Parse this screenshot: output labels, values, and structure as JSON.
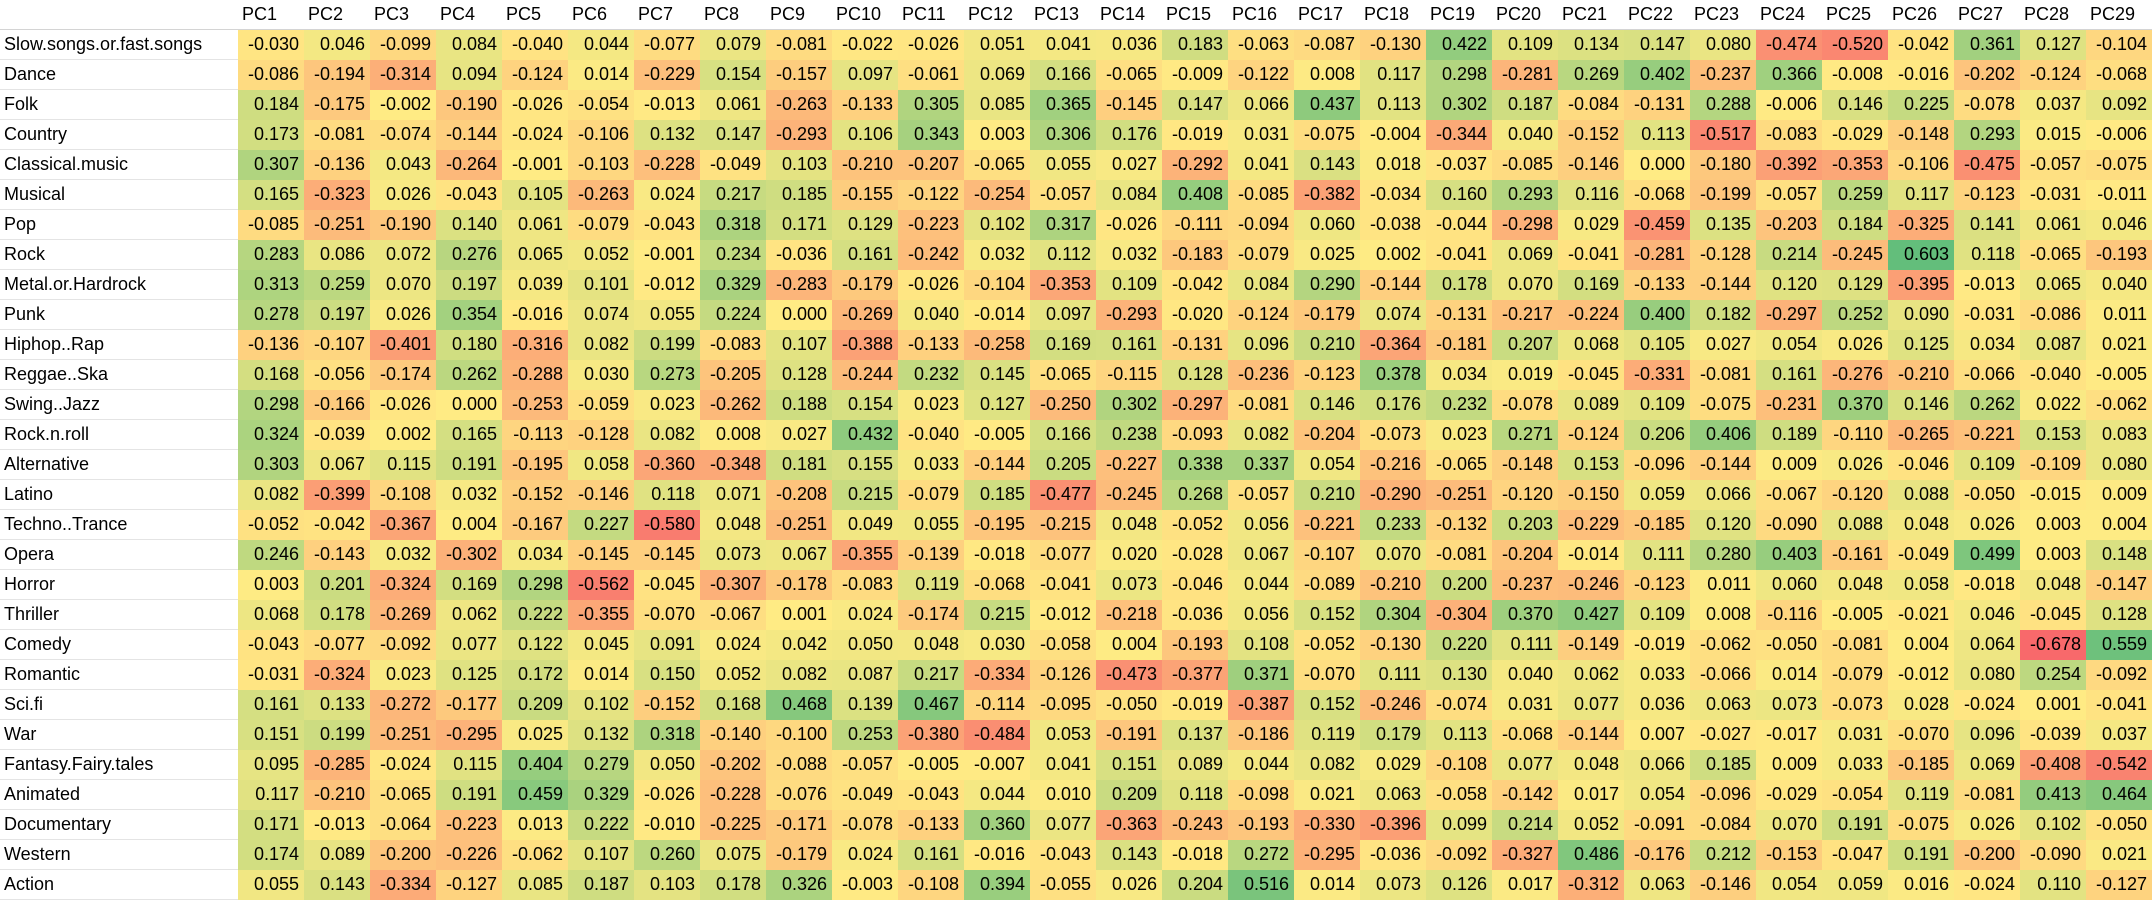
{
  "chart_data": {
    "type": "heatmap",
    "color_scale": {
      "low": "#f8696b",
      "mid": "#ffeb84",
      "high": "#63be7b"
    },
    "columns": [
      "PC1",
      "PC2",
      "PC3",
      "PC4",
      "PC5",
      "PC6",
      "PC7",
      "PC8",
      "PC9",
      "PC10",
      "PC11",
      "PC12",
      "PC13",
      "PC14",
      "PC15",
      "PC16",
      "PC17",
      "PC18",
      "PC19",
      "PC20",
      "PC21",
      "PC22",
      "PC23",
      "PC24",
      "PC25",
      "PC26",
      "PC27",
      "PC28",
      "PC29"
    ],
    "rows": [
      {
        "label": "Slow.songs.or.fast.songs",
        "values": [
          "-0.030",
          "0.046",
          "-0.099",
          "0.084",
          "-0.040",
          "0.044",
          "-0.077",
          "0.079",
          "-0.081",
          "-0.022",
          "-0.026",
          "0.051",
          "0.041",
          "0.036",
          "0.183",
          "-0.063",
          "-0.087",
          "-0.130",
          "0.422",
          "0.109",
          "0.134",
          "0.147",
          "0.080",
          "-0.474",
          "-0.520",
          "-0.042",
          "0.361",
          "0.127",
          "-0.104"
        ]
      },
      {
        "label": "Dance",
        "values": [
          "-0.086",
          "-0.194",
          "-0.314",
          "0.094",
          "-0.124",
          "0.014",
          "-0.229",
          "0.154",
          "-0.157",
          "0.097",
          "-0.061",
          "0.069",
          "0.166",
          "-0.065",
          "-0.009",
          "-0.122",
          "0.008",
          "0.117",
          "0.298",
          "-0.281",
          "0.269",
          "0.402",
          "-0.237",
          "0.366",
          "-0.008",
          "-0.016",
          "-0.202",
          "-0.124",
          "-0.068"
        ]
      },
      {
        "label": "Folk",
        "values": [
          "0.184",
          "-0.175",
          "-0.002",
          "-0.190",
          "-0.026",
          "-0.054",
          "-0.013",
          "0.061",
          "-0.263",
          "-0.133",
          "0.305",
          "0.085",
          "0.365",
          "-0.145",
          "0.147",
          "0.066",
          "0.437",
          "0.113",
          "0.302",
          "0.187",
          "-0.084",
          "-0.131",
          "0.288",
          "-0.006",
          "0.146",
          "0.225",
          "-0.078",
          "0.037",
          "0.092"
        ]
      },
      {
        "label": "Country",
        "values": [
          "0.173",
          "-0.081",
          "-0.074",
          "-0.144",
          "-0.024",
          "-0.106",
          "0.132",
          "0.147",
          "-0.293",
          "0.106",
          "0.343",
          "0.003",
          "0.306",
          "0.176",
          "-0.019",
          "0.031",
          "-0.075",
          "-0.004",
          "-0.344",
          "0.040",
          "-0.152",
          "0.113",
          "-0.517",
          "-0.083",
          "-0.029",
          "-0.148",
          "0.293",
          "0.015",
          "-0.006"
        ]
      },
      {
        "label": "Classical.music",
        "values": [
          "0.307",
          "-0.136",
          "0.043",
          "-0.264",
          "-0.001",
          "-0.103",
          "-0.228",
          "-0.049",
          "0.103",
          "-0.210",
          "-0.207",
          "-0.065",
          "0.055",
          "0.027",
          "-0.292",
          "0.041",
          "0.143",
          "0.018",
          "-0.037",
          "-0.085",
          "-0.146",
          "0.000",
          "-0.180",
          "-0.392",
          "-0.353",
          "-0.106",
          "-0.475",
          "-0.057",
          "-0.075"
        ]
      },
      {
        "label": "Musical",
        "values": [
          "0.165",
          "-0.323",
          "0.026",
          "-0.043",
          "0.105",
          "-0.263",
          "0.024",
          "0.217",
          "0.185",
          "-0.155",
          "-0.122",
          "-0.254",
          "-0.057",
          "0.084",
          "0.408",
          "-0.085",
          "-0.382",
          "-0.034",
          "0.160",
          "0.293",
          "0.116",
          "-0.068",
          "-0.199",
          "-0.057",
          "0.259",
          "0.117",
          "-0.123",
          "-0.031",
          "-0.011"
        ]
      },
      {
        "label": "Pop",
        "values": [
          "-0.085",
          "-0.251",
          "-0.190",
          "0.140",
          "0.061",
          "-0.079",
          "-0.043",
          "0.318",
          "0.171",
          "0.129",
          "-0.223",
          "0.102",
          "0.317",
          "-0.026",
          "-0.111",
          "-0.094",
          "0.060",
          "-0.038",
          "-0.044",
          "-0.298",
          "0.029",
          "-0.459",
          "0.135",
          "-0.203",
          "0.184",
          "-0.325",
          "0.141",
          "0.061",
          "0.046"
        ]
      },
      {
        "label": "Rock",
        "values": [
          "0.283",
          "0.086",
          "0.072",
          "0.276",
          "0.065",
          "0.052",
          "-0.001",
          "0.234",
          "-0.036",
          "0.161",
          "-0.242",
          "0.032",
          "0.112",
          "0.032",
          "-0.183",
          "-0.079",
          "0.025",
          "0.002",
          "-0.041",
          "0.069",
          "-0.041",
          "-0.281",
          "-0.128",
          "0.214",
          "-0.245",
          "0.603",
          "0.118",
          "-0.065",
          "-0.193"
        ]
      },
      {
        "label": "Metal.or.Hardrock",
        "values": [
          "0.313",
          "0.259",
          "0.070",
          "0.197",
          "0.039",
          "0.101",
          "-0.012",
          "0.329",
          "-0.283",
          "-0.179",
          "-0.026",
          "-0.104",
          "-0.353",
          "0.109",
          "-0.042",
          "0.084",
          "0.290",
          "-0.144",
          "0.178",
          "0.070",
          "0.169",
          "-0.133",
          "-0.144",
          "0.120",
          "0.129",
          "-0.395",
          "-0.013",
          "0.065",
          "0.040"
        ]
      },
      {
        "label": "Punk",
        "values": [
          "0.278",
          "0.197",
          "0.026",
          "0.354",
          "-0.016",
          "0.074",
          "0.055",
          "0.224",
          "0.000",
          "-0.269",
          "0.040",
          "-0.014",
          "0.097",
          "-0.293",
          "-0.020",
          "-0.124",
          "-0.179",
          "0.074",
          "-0.131",
          "-0.217",
          "-0.224",
          "0.400",
          "0.182",
          "-0.297",
          "0.252",
          "0.090",
          "-0.031",
          "-0.086",
          "0.011"
        ]
      },
      {
        "label": "Hiphop..Rap",
        "values": [
          "-0.136",
          "-0.107",
          "-0.401",
          "0.180",
          "-0.316",
          "0.082",
          "0.199",
          "-0.083",
          "0.107",
          "-0.388",
          "-0.133",
          "-0.258",
          "0.169",
          "0.161",
          "-0.131",
          "0.096",
          "0.210",
          "-0.364",
          "-0.181",
          "0.207",
          "0.068",
          "0.105",
          "0.027",
          "0.054",
          "0.026",
          "0.125",
          "0.034",
          "0.087",
          "0.021"
        ]
      },
      {
        "label": "Reggae..Ska",
        "values": [
          "0.168",
          "-0.056",
          "-0.174",
          "0.262",
          "-0.288",
          "0.030",
          "0.273",
          "-0.205",
          "0.128",
          "-0.244",
          "0.232",
          "0.145",
          "-0.065",
          "-0.115",
          "0.128",
          "-0.236",
          "-0.123",
          "0.378",
          "0.034",
          "0.019",
          "-0.045",
          "-0.331",
          "-0.081",
          "0.161",
          "-0.276",
          "-0.210",
          "-0.066",
          "-0.040",
          "-0.005"
        ]
      },
      {
        "label": "Swing..Jazz",
        "values": [
          "0.298",
          "-0.166",
          "-0.026",
          "0.000",
          "-0.253",
          "-0.059",
          "0.023",
          "-0.262",
          "0.188",
          "0.154",
          "0.023",
          "0.127",
          "-0.250",
          "0.302",
          "-0.297",
          "-0.081",
          "0.146",
          "0.176",
          "0.232",
          "-0.078",
          "0.089",
          "0.109",
          "-0.075",
          "-0.231",
          "0.370",
          "0.146",
          "0.262",
          "0.022",
          "-0.062"
        ]
      },
      {
        "label": "Rock.n.roll",
        "values": [
          "0.324",
          "-0.039",
          "0.002",
          "0.165",
          "-0.113",
          "-0.128",
          "0.082",
          "0.008",
          "0.027",
          "0.432",
          "-0.040",
          "-0.005",
          "0.166",
          "0.238",
          "-0.093",
          "0.082",
          "-0.204",
          "-0.073",
          "0.023",
          "0.271",
          "-0.124",
          "0.206",
          "0.406",
          "0.189",
          "-0.110",
          "-0.265",
          "-0.221",
          "0.153",
          "0.083"
        ]
      },
      {
        "label": "Alternative",
        "values": [
          "0.303",
          "0.067",
          "0.115",
          "0.191",
          "-0.195",
          "0.058",
          "-0.360",
          "-0.348",
          "0.181",
          "0.155",
          "0.033",
          "-0.144",
          "0.205",
          "-0.227",
          "0.338",
          "0.337",
          "0.054",
          "-0.216",
          "-0.065",
          "-0.148",
          "0.153",
          "-0.096",
          "-0.144",
          "0.009",
          "0.026",
          "-0.046",
          "0.109",
          "-0.109",
          "0.080"
        ]
      },
      {
        "label": "Latino",
        "values": [
          "0.082",
          "-0.399",
          "-0.108",
          "0.032",
          "-0.152",
          "-0.146",
          "0.118",
          "0.071",
          "-0.208",
          "0.215",
          "-0.079",
          "0.185",
          "-0.477",
          "-0.245",
          "0.268",
          "-0.057",
          "0.210",
          "-0.290",
          "-0.251",
          "-0.120",
          "-0.150",
          "0.059",
          "0.066",
          "-0.067",
          "-0.120",
          "0.088",
          "-0.050",
          "-0.015",
          "0.009"
        ]
      },
      {
        "label": "Techno..Trance",
        "values": [
          "-0.052",
          "-0.042",
          "-0.367",
          "0.004",
          "-0.167",
          "0.227",
          "-0.580",
          "0.048",
          "-0.251",
          "0.049",
          "0.055",
          "-0.195",
          "-0.215",
          "0.048",
          "-0.052",
          "0.056",
          "-0.221",
          "0.233",
          "-0.132",
          "0.203",
          "-0.229",
          "-0.185",
          "0.120",
          "-0.090",
          "0.088",
          "0.048",
          "0.026",
          "0.003",
          "0.004"
        ]
      },
      {
        "label": "Opera",
        "values": [
          "0.246",
          "-0.143",
          "0.032",
          "-0.302",
          "0.034",
          "-0.145",
          "-0.145",
          "0.073",
          "0.067",
          "-0.355",
          "-0.139",
          "-0.018",
          "-0.077",
          "0.020",
          "-0.028",
          "0.067",
          "-0.107",
          "0.070",
          "-0.081",
          "-0.204",
          "-0.014",
          "0.111",
          "0.280",
          "0.403",
          "-0.161",
          "-0.049",
          "0.499",
          "0.003",
          "0.148"
        ]
      },
      {
        "label": "Horror",
        "values": [
          "0.003",
          "0.201",
          "-0.324",
          "0.169",
          "0.298",
          "-0.562",
          "-0.045",
          "-0.307",
          "-0.178",
          "-0.083",
          "0.119",
          "-0.068",
          "-0.041",
          "0.073",
          "-0.046",
          "0.044",
          "-0.089",
          "-0.210",
          "0.200",
          "-0.237",
          "-0.246",
          "-0.123",
          "0.011",
          "0.060",
          "0.048",
          "0.058",
          "-0.018",
          "0.048",
          "-0.147"
        ]
      },
      {
        "label": "Thriller",
        "values": [
          "0.068",
          "0.178",
          "-0.269",
          "0.062",
          "0.222",
          "-0.355",
          "-0.070",
          "-0.067",
          "0.001",
          "0.024",
          "-0.174",
          "0.215",
          "-0.012",
          "-0.218",
          "-0.036",
          "0.056",
          "0.152",
          "0.304",
          "-0.304",
          "0.370",
          "0.427",
          "0.109",
          "0.008",
          "-0.116",
          "-0.005",
          "-0.021",
          "0.046",
          "-0.045",
          "0.128"
        ]
      },
      {
        "label": "Comedy",
        "values": [
          "-0.043",
          "-0.077",
          "-0.092",
          "0.077",
          "0.122",
          "0.045",
          "0.091",
          "0.024",
          "0.042",
          "0.050",
          "0.048",
          "0.030",
          "-0.058",
          "0.004",
          "-0.193",
          "0.108",
          "-0.052",
          "-0.130",
          "0.220",
          "0.111",
          "-0.149",
          "-0.019",
          "-0.062",
          "-0.050",
          "-0.081",
          "0.004",
          "0.064",
          "-0.678",
          "0.559"
        ]
      },
      {
        "label": "Romantic",
        "values": [
          "-0.031",
          "-0.324",
          "0.023",
          "0.125",
          "0.172",
          "0.014",
          "0.150",
          "0.052",
          "0.082",
          "0.087",
          "0.217",
          "-0.334",
          "-0.126",
          "-0.473",
          "-0.377",
          "0.371",
          "-0.070",
          "0.111",
          "0.130",
          "0.040",
          "0.062",
          "0.033",
          "-0.066",
          "0.014",
          "-0.079",
          "-0.012",
          "0.080",
          "0.254",
          "-0.092"
        ]
      },
      {
        "label": "Sci.fi",
        "values": [
          "0.161",
          "0.133",
          "-0.272",
          "-0.177",
          "0.209",
          "0.102",
          "-0.152",
          "0.168",
          "0.468",
          "0.139",
          "0.467",
          "-0.114",
          "-0.095",
          "-0.050",
          "-0.019",
          "-0.387",
          "0.152",
          "-0.246",
          "-0.074",
          "0.031",
          "0.077",
          "0.036",
          "0.063",
          "0.073",
          "-0.073",
          "0.028",
          "-0.024",
          "0.001",
          "-0.041"
        ]
      },
      {
        "label": "War",
        "values": [
          "0.151",
          "0.199",
          "-0.251",
          "-0.295",
          "0.025",
          "0.132",
          "0.318",
          "-0.140",
          "-0.100",
          "0.253",
          "-0.380",
          "-0.484",
          "0.053",
          "-0.191",
          "0.137",
          "-0.186",
          "0.119",
          "0.179",
          "0.113",
          "-0.068",
          "-0.144",
          "0.007",
          "-0.027",
          "-0.017",
          "0.031",
          "-0.070",
          "0.096",
          "-0.039",
          "0.037"
        ]
      },
      {
        "label": "Fantasy.Fairy.tales",
        "values": [
          "0.095",
          "-0.285",
          "-0.024",
          "0.115",
          "0.404",
          "0.279",
          "0.050",
          "-0.202",
          "-0.088",
          "-0.057",
          "-0.005",
          "-0.007",
          "0.041",
          "0.151",
          "0.089",
          "0.044",
          "0.082",
          "0.029",
          "-0.108",
          "0.077",
          "0.048",
          "0.066",
          "0.185",
          "0.009",
          "0.033",
          "-0.185",
          "0.069",
          "-0.408",
          "-0.542"
        ]
      },
      {
        "label": "Animated",
        "values": [
          "0.117",
          "-0.210",
          "-0.065",
          "0.191",
          "0.459",
          "0.329",
          "-0.026",
          "-0.228",
          "-0.076",
          "-0.049",
          "-0.043",
          "0.044",
          "0.010",
          "0.209",
          "0.118",
          "-0.098",
          "0.021",
          "0.063",
          "-0.058",
          "-0.142",
          "0.017",
          "0.054",
          "-0.096",
          "-0.029",
          "-0.054",
          "0.119",
          "-0.081",
          "0.413",
          "0.464"
        ]
      },
      {
        "label": "Documentary",
        "values": [
          "0.171",
          "-0.013",
          "-0.064",
          "-0.223",
          "0.013",
          "0.222",
          "-0.010",
          "-0.225",
          "-0.171",
          "-0.078",
          "-0.133",
          "0.360",
          "0.077",
          "-0.363",
          "-0.243",
          "-0.193",
          "-0.330",
          "-0.396",
          "0.099",
          "0.214",
          "0.052",
          "-0.091",
          "-0.084",
          "0.070",
          "0.191",
          "-0.075",
          "0.026",
          "0.102",
          "-0.050"
        ]
      },
      {
        "label": "Western",
        "values": [
          "0.174",
          "0.089",
          "-0.200",
          "-0.226",
          "-0.062",
          "0.107",
          "0.260",
          "0.075",
          "-0.179",
          "0.024",
          "0.161",
          "-0.016",
          "-0.043",
          "0.143",
          "-0.018",
          "0.272",
          "-0.295",
          "-0.036",
          "-0.092",
          "-0.327",
          "0.486",
          "-0.176",
          "0.212",
          "-0.153",
          "-0.047",
          "0.191",
          "-0.200",
          "-0.090",
          "0.021"
        ]
      },
      {
        "label": "Action",
        "values": [
          "0.055",
          "0.143",
          "-0.334",
          "-0.127",
          "0.085",
          "0.187",
          "0.103",
          "0.178",
          "0.326",
          "-0.003",
          "-0.108",
          "0.394",
          "-0.055",
          "0.026",
          "0.204",
          "0.516",
          "0.014",
          "0.073",
          "0.126",
          "0.017",
          "-0.312",
          "0.063",
          "-0.146",
          "0.054",
          "0.059",
          "0.016",
          "-0.024",
          "0.110",
          "-0.127"
        ]
      }
    ]
  }
}
